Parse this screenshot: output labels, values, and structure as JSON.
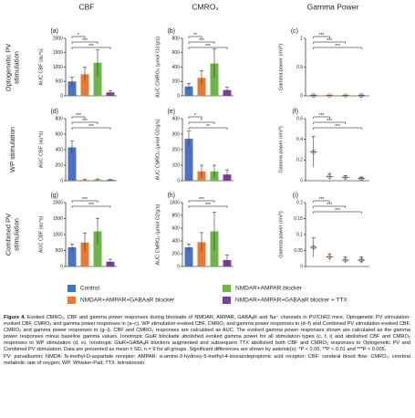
{
  "headers": [
    "CBF",
    "CMRO₂",
    "Gamma Power"
  ],
  "row_labels": [
    [
      "Optogenetic PV",
      "stimulation"
    ],
    [
      "WP stimulation"
    ],
    [
      "Combined PV",
      "stimulation"
    ]
  ],
  "legend": [
    {
      "name": "Control",
      "color": "#4a72c0"
    },
    {
      "name": "NMDAR+AMPAR blocker",
      "color": "#6cb548"
    },
    {
      "name": "NMDAR+AMPAR+GABAaR blocker",
      "color": "#ec7a2e"
    },
    {
      "name": "NMDAR+AMPAR+GABAaR blocker + TTX",
      "color": "#7b3fa0"
    }
  ],
  "chart_data": [
    {
      "type": "bar",
      "label": "(a)",
      "y_label": "AUC CBF (au*s)",
      "categories": [
        null,
        null,
        null,
        null
      ],
      "values": [
        500,
        750,
        1150,
        120
      ],
      "errors": [
        150,
        250,
        450,
        60
      ],
      "colors": [
        "#4a72c0",
        "#ec7a2e",
        "#6cb548",
        "#7b3fa0"
      ],
      "ylim": [
        0,
        2000
      ],
      "yticks": [
        0,
        500,
        1000,
        1500,
        2000
      ],
      "annotations": [
        {
          "pair": [
            0,
            1
          ],
          "text": "*"
        },
        {
          "pair": [
            0,
            2
          ],
          "text": "***"
        },
        {
          "pair": [
            0,
            3
          ],
          "text": "***"
        }
      ]
    },
    {
      "type": "bar",
      "label": "(b)",
      "y_label": "AUC CMRO₂ (μmol O2/g/s)",
      "categories": [
        null,
        null,
        null,
        null
      ],
      "values": [
        130,
        250,
        450,
        80
      ],
      "errors": [
        40,
        100,
        200,
        40
      ],
      "colors": [
        "#4a72c0",
        "#ec7a2e",
        "#6cb548",
        "#7b3fa0"
      ],
      "ylim": [
        0,
        800
      ],
      "yticks": [
        0,
        200,
        400,
        600,
        800
      ],
      "annotations": [
        {
          "pair": [
            0,
            1
          ],
          "text": "**"
        },
        {
          "pair": [
            0,
            2
          ],
          "text": "***"
        },
        {
          "pair": [
            0,
            3
          ],
          "text": "***"
        }
      ]
    },
    {
      "type": "dot",
      "label": "(c)",
      "y_label": "Gamma power (mV²)",
      "categories": [
        null,
        null,
        null,
        null
      ],
      "values": [
        0.005,
        0.005,
        0.005,
        0.005
      ],
      "errors": [
        0.003,
        0.003,
        0.003,
        0.003
      ],
      "colors": [
        "#4a72c0",
        "#ec7a2e",
        "#6cb548",
        "#7b3fa0"
      ],
      "ylim": [
        0,
        1
      ],
      "yticks": [
        0,
        0.5,
        1
      ],
      "annotations": [
        {
          "pair": [
            0,
            1
          ],
          "text": "***"
        },
        {
          "pair": [
            0,
            2
          ],
          "text": "***"
        },
        {
          "pair": [
            0,
            3
          ],
          "text": "***"
        }
      ]
    },
    {
      "type": "bar",
      "label": "(d)",
      "y_label": "AUC CBF (au*s)",
      "categories": [
        null,
        null,
        null,
        null
      ],
      "values": [
        430,
        10,
        15,
        10
      ],
      "errors": [
        80,
        8,
        8,
        6
      ],
      "colors": [
        "#4a72c0",
        "#ec7a2e",
        "#6cb548",
        "#7b3fa0"
      ],
      "ylim": [
        0,
        800
      ],
      "yticks": [
        0,
        200,
        400,
        600,
        800
      ],
      "annotations": [
        {
          "pair": [
            0,
            1
          ],
          "text": "***"
        },
        {
          "pair": [
            0,
            2
          ],
          "text": "***"
        },
        {
          "pair": [
            0,
            3
          ],
          "text": "***"
        }
      ]
    },
    {
      "type": "bar",
      "label": "(e)",
      "y_label": "AUC CMRO₂ (μmol O2/g/s)",
      "categories": [
        null,
        null,
        null,
        null
      ],
      "values": [
        270,
        60,
        60,
        40
      ],
      "errors": [
        50,
        40,
        40,
        30
      ],
      "colors": [
        "#4a72c0",
        "#ec7a2e",
        "#6cb548",
        "#7b3fa0"
      ],
      "ylim": [
        0,
        400
      ],
      "yticks": [
        0,
        100,
        200,
        300,
        400
      ],
      "annotations": [
        {
          "pair": [
            0,
            1
          ],
          "text": "*"
        },
        {
          "pair": [
            0,
            2
          ],
          "text": "*"
        },
        {
          "pair": [
            0,
            3
          ],
          "text": "**"
        }
      ]
    },
    {
      "type": "dot",
      "label": "(f)",
      "y_label": "Gamma power (mV²)",
      "categories": [
        null,
        null,
        null,
        null
      ],
      "values": [
        0.28,
        0.04,
        0.03,
        0.02
      ],
      "errors": [
        0.15,
        0.03,
        0.02,
        0.01
      ],
      "colors": [
        "#4a72c0",
        "#ec7a2e",
        "#6cb548",
        "#7b3fa0"
      ],
      "ylim": [
        0,
        0.6
      ],
      "yticks": [
        0,
        0.2,
        0.4,
        0.6
      ],
      "annotations": [
        {
          "pair": [
            0,
            1
          ],
          "text": "***"
        },
        {
          "pair": [
            0,
            2
          ],
          "text": "***"
        },
        {
          "pair": [
            0,
            3
          ],
          "text": "***"
        }
      ]
    },
    {
      "type": "bar",
      "label": "(g)",
      "y_label": "AUC CBF (au*s)",
      "categories": [
        null,
        null,
        null,
        null
      ],
      "values": [
        600,
        750,
        1100,
        150
      ],
      "errors": [
        100,
        300,
        400,
        80
      ],
      "colors": [
        "#4a72c0",
        "#ec7a2e",
        "#6cb548",
        "#7b3fa0"
      ],
      "ylim": [
        0,
        2000
      ],
      "yticks": [
        0,
        500,
        1000,
        1500,
        2000
      ],
      "annotations": [
        {
          "pair": [
            0,
            2
          ],
          "text": "***"
        },
        {
          "pair": [
            0,
            3
          ],
          "text": "***"
        }
      ]
    },
    {
      "type": "bar",
      "label": "(h)",
      "y_label": "AUC CMRO₂ (μmol O2/g/s)",
      "categories": [
        null,
        null,
        null,
        null
      ],
      "values": [
        300,
        380,
        550,
        100
      ],
      "errors": [
        50,
        150,
        300,
        80
      ],
      "colors": [
        "#4a72c0",
        "#ec7a2e",
        "#6cb548",
        "#7b3fa0"
      ],
      "ylim": [
        0,
        1000
      ],
      "yticks": [
        0,
        200,
        400,
        600,
        800,
        1000
      ],
      "annotations": [
        {
          "pair": [
            0,
            2
          ],
          "text": "***"
        },
        {
          "pair": [
            0,
            3
          ],
          "text": "***"
        }
      ]
    },
    {
      "type": "dot",
      "label": "(i)",
      "y_label": "Gamma power (mV²)",
      "categories": [
        null,
        null,
        null,
        null
      ],
      "values": [
        0.06,
        0.03,
        0.02,
        0.02
      ],
      "errors": [
        0.03,
        0.01,
        0.01,
        0.01
      ],
      "colors": [
        "#4a72c0",
        "#ec7a2e",
        "#6cb548",
        "#7b3fa0"
      ],
      "ylim": [
        0,
        0.2
      ],
      "yticks": [
        0,
        0.05,
        0.1,
        0.15,
        0.2
      ],
      "annotations": [
        {
          "pair": [
            0,
            1
          ],
          "text": "***"
        },
        {
          "pair": [
            0,
            2
          ],
          "text": "***"
        },
        {
          "pair": [
            0,
            3
          ],
          "text": "***"
        }
      ]
    }
  ],
  "caption": {
    "label": "Figure 4.",
    "text": "Evoked CMRO₂, CBF and gamma power responses during blockade of NMDAR, AMPAR, GABAₐR and Na⁺ channels in PV/ChR2 mice. Optogenetic PV stimulation-evoked CBF, CMRO₂ and gamma power responses in (a–c), WP stimulation-evoked CBF, CMRO₂ and gamma power responses in (d–f) and Combined PV stimulation-evoked CBF, CMRO₂ and gamma power responses in (g–i). CBF and CMRO₂ responses are calculated as AUC. The evoked gamma power responses shown are calculated as the gamma power responses minus baseline gamma values. Ionotropic GluR blockade abolished evoked gamma power for all stimulation types (c, f, i) and abolished CBF and CMRO₂ responses to WP stimulation (d, e). Ionotropic GluR+GABAₐR blockers augmented and subsequent TTX abolished both CBF and CMRO₂ responses to Optogenetic PV and Combined PV stimulation. Data are presented as mean ± SD, n = 9 for all groups. Significant differences are shown by asterisk(s): *P < 0.05, **P < 0.01 and ***P < 0.005.",
    "abbreviations": "PV: parvalbumin; NMDA: N-methyl-D-aspartate receptor; AMPAR: α-amino-3-hydroxy-5-methyl-4-isoxazolepropionic acid receptor; CBF: cerebral blood flow; CMRO₂: cerebral metabolic rate of oxygen; WP: Whisker-Pad; TTX: tetrodotoxin."
  }
}
